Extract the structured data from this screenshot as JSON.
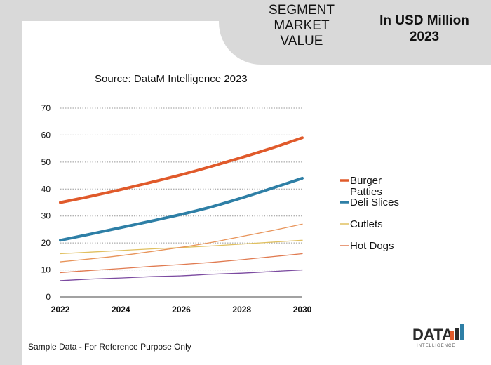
{
  "header": {
    "segment_title_lines": [
      "SEGMENT",
      "MARKET",
      "VALUE"
    ],
    "units_title_lines": [
      "In USD Million",
      "2023"
    ]
  },
  "source": "Source: DataM Intelligence  2023",
  "footnote": "Sample Data - For Reference Purpose Only",
  "logo": {
    "text": "DATA",
    "sub": "INTELLIGENCE"
  },
  "colors": {
    "burger": "#e05a2b",
    "deli": "#2e7fa6",
    "cutlets": "#e0c060",
    "hotdogs": "#e07a50",
    "orange_thin": "#e8945a",
    "purple": "#7b4aa0",
    "grid": "#999999"
  },
  "chart_data": {
    "type": "line",
    "x": [
      2022,
      2023,
      2024,
      2025,
      2026,
      2027,
      2028,
      2029,
      2030
    ],
    "xticks": [
      "2022",
      "2024",
      "2026",
      "2028",
      "2030"
    ],
    "yticks": [
      "0",
      "10",
      "20",
      "30",
      "40",
      "50",
      "60",
      "70"
    ],
    "ylim": [
      0,
      70
    ],
    "xlim": [
      2022,
      2030
    ],
    "grid": "horizontal dotted",
    "legend_position": "right",
    "series": [
      {
        "name": "Burger Patties",
        "legend_lines": [
          "Burger",
          "Patties"
        ],
        "color_key": "burger",
        "thick": true,
        "values": [
          35,
          37.3,
          39.8,
          42.5,
          45.3,
          48.4,
          51.7,
          55.2,
          59
        ]
      },
      {
        "name": "Deli Slices",
        "legend_lines": [
          "Deli Slices"
        ],
        "color_key": "deli",
        "thick": true,
        "values": [
          21,
          23.3,
          25.7,
          28.1,
          30.6,
          33.4,
          36.7,
          40.3,
          44
        ]
      },
      {
        "name": "Cutlets",
        "legend_lines": [
          "Cutlets"
        ],
        "color_key": "cutlets",
        "thick": false,
        "values": [
          16,
          16.6,
          17.2,
          17.8,
          18.3,
          18.9,
          19.6,
          20.3,
          21
        ]
      },
      {
        "name": "Hot Dogs",
        "legend_lines": [
          "Hot Dogs"
        ],
        "color_key": "hotdogs",
        "thick": false,
        "values": [
          9,
          9.8,
          10.5,
          11.3,
          12,
          12.8,
          13.8,
          14.9,
          16
        ]
      },
      {
        "color_key": "orange_thin",
        "thick": false,
        "values": [
          13,
          14.1,
          15.3,
          16.8,
          18.4,
          20.2,
          22.4,
          24.6,
          27
        ]
      },
      {
        "color_key": "purple",
        "thick": false,
        "values": [
          6,
          6.6,
          7,
          7.5,
          7.8,
          8.4,
          8.8,
          9.4,
          10
        ]
      }
    ]
  }
}
